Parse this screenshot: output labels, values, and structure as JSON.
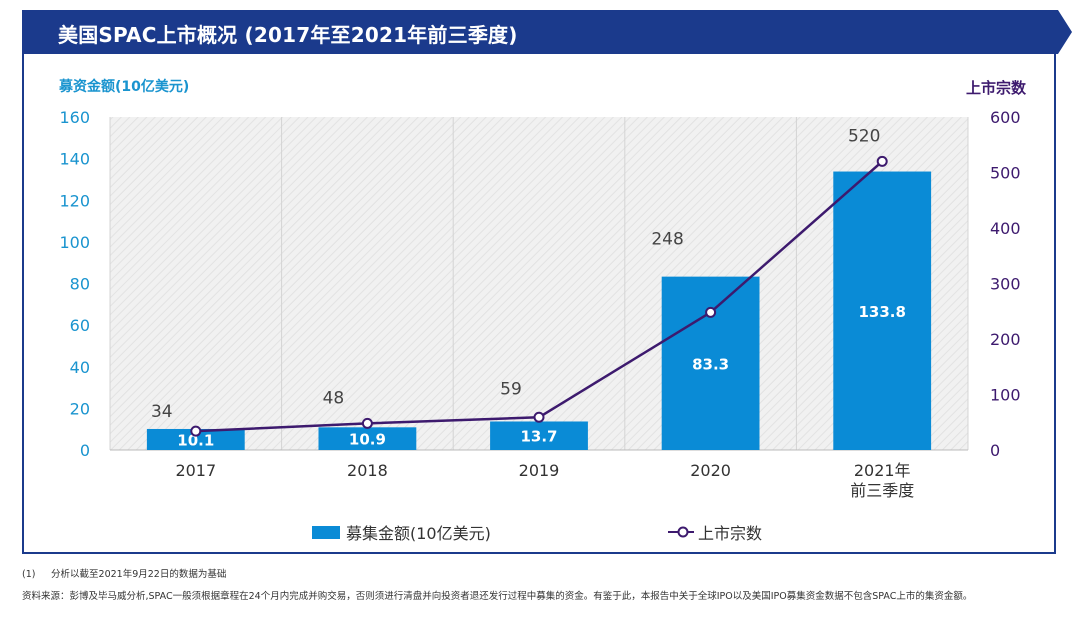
{
  "title": "美国SPAC上市概况 (2017年至2021年前三季度)",
  "colors": {
    "banner": "#1b3a8c",
    "bar": "#0a8bd6",
    "line": "#3d1a6e",
    "left_axis": "#1a94cf",
    "right_axis": "#3d1a6e"
  },
  "chart_data": {
    "type": "bar",
    "categories": [
      "2017",
      "2018",
      "2019",
      "2020",
      "2021年|前三季度"
    ],
    "series": [
      {
        "name": "募集金额(10亿美元)",
        "type": "bar",
        "axis": "left",
        "values": [
          10.1,
          10.9,
          13.7,
          83.3,
          133.8
        ],
        "labels": [
          "10.1",
          "10.9",
          "13.7",
          "83.3",
          "133.8"
        ]
      },
      {
        "name": "上市宗数",
        "type": "line",
        "axis": "right",
        "values": [
          34,
          48,
          59,
          248,
          520
        ],
        "labels": [
          "34",
          "48",
          "59",
          "248",
          "520"
        ]
      }
    ],
    "y_left": {
      "label": "募资金额(10亿美元)",
      "range": [
        0,
        160
      ],
      "ticks": [
        "0",
        "20",
        "40",
        "60",
        "80",
        "100",
        "120",
        "140",
        "160"
      ]
    },
    "y_right": {
      "label": "上市宗数",
      "range": [
        0,
        600
      ],
      "ticks": [
        "0",
        "100",
        "200",
        "300",
        "400",
        "500",
        "600"
      ]
    },
    "legend": {
      "bar_label": "募集金额(10亿美元)",
      "line_label": "上市宗数",
      "position": "bottom"
    }
  },
  "footnote": {
    "number": "(1)",
    "text": "分析以截至2021年9月22日的数据为基础"
  },
  "source": "资料来源：彭博及毕马威分析,SPAC一般须根据章程在24个月内完成并购交易，否则须进行清盘并向投资者退还发行过程中募集的资金。有鉴于此，本报告中关于全球IPO以及美国IPO募集资金数据不包含SPAC上市的集资金额。"
}
